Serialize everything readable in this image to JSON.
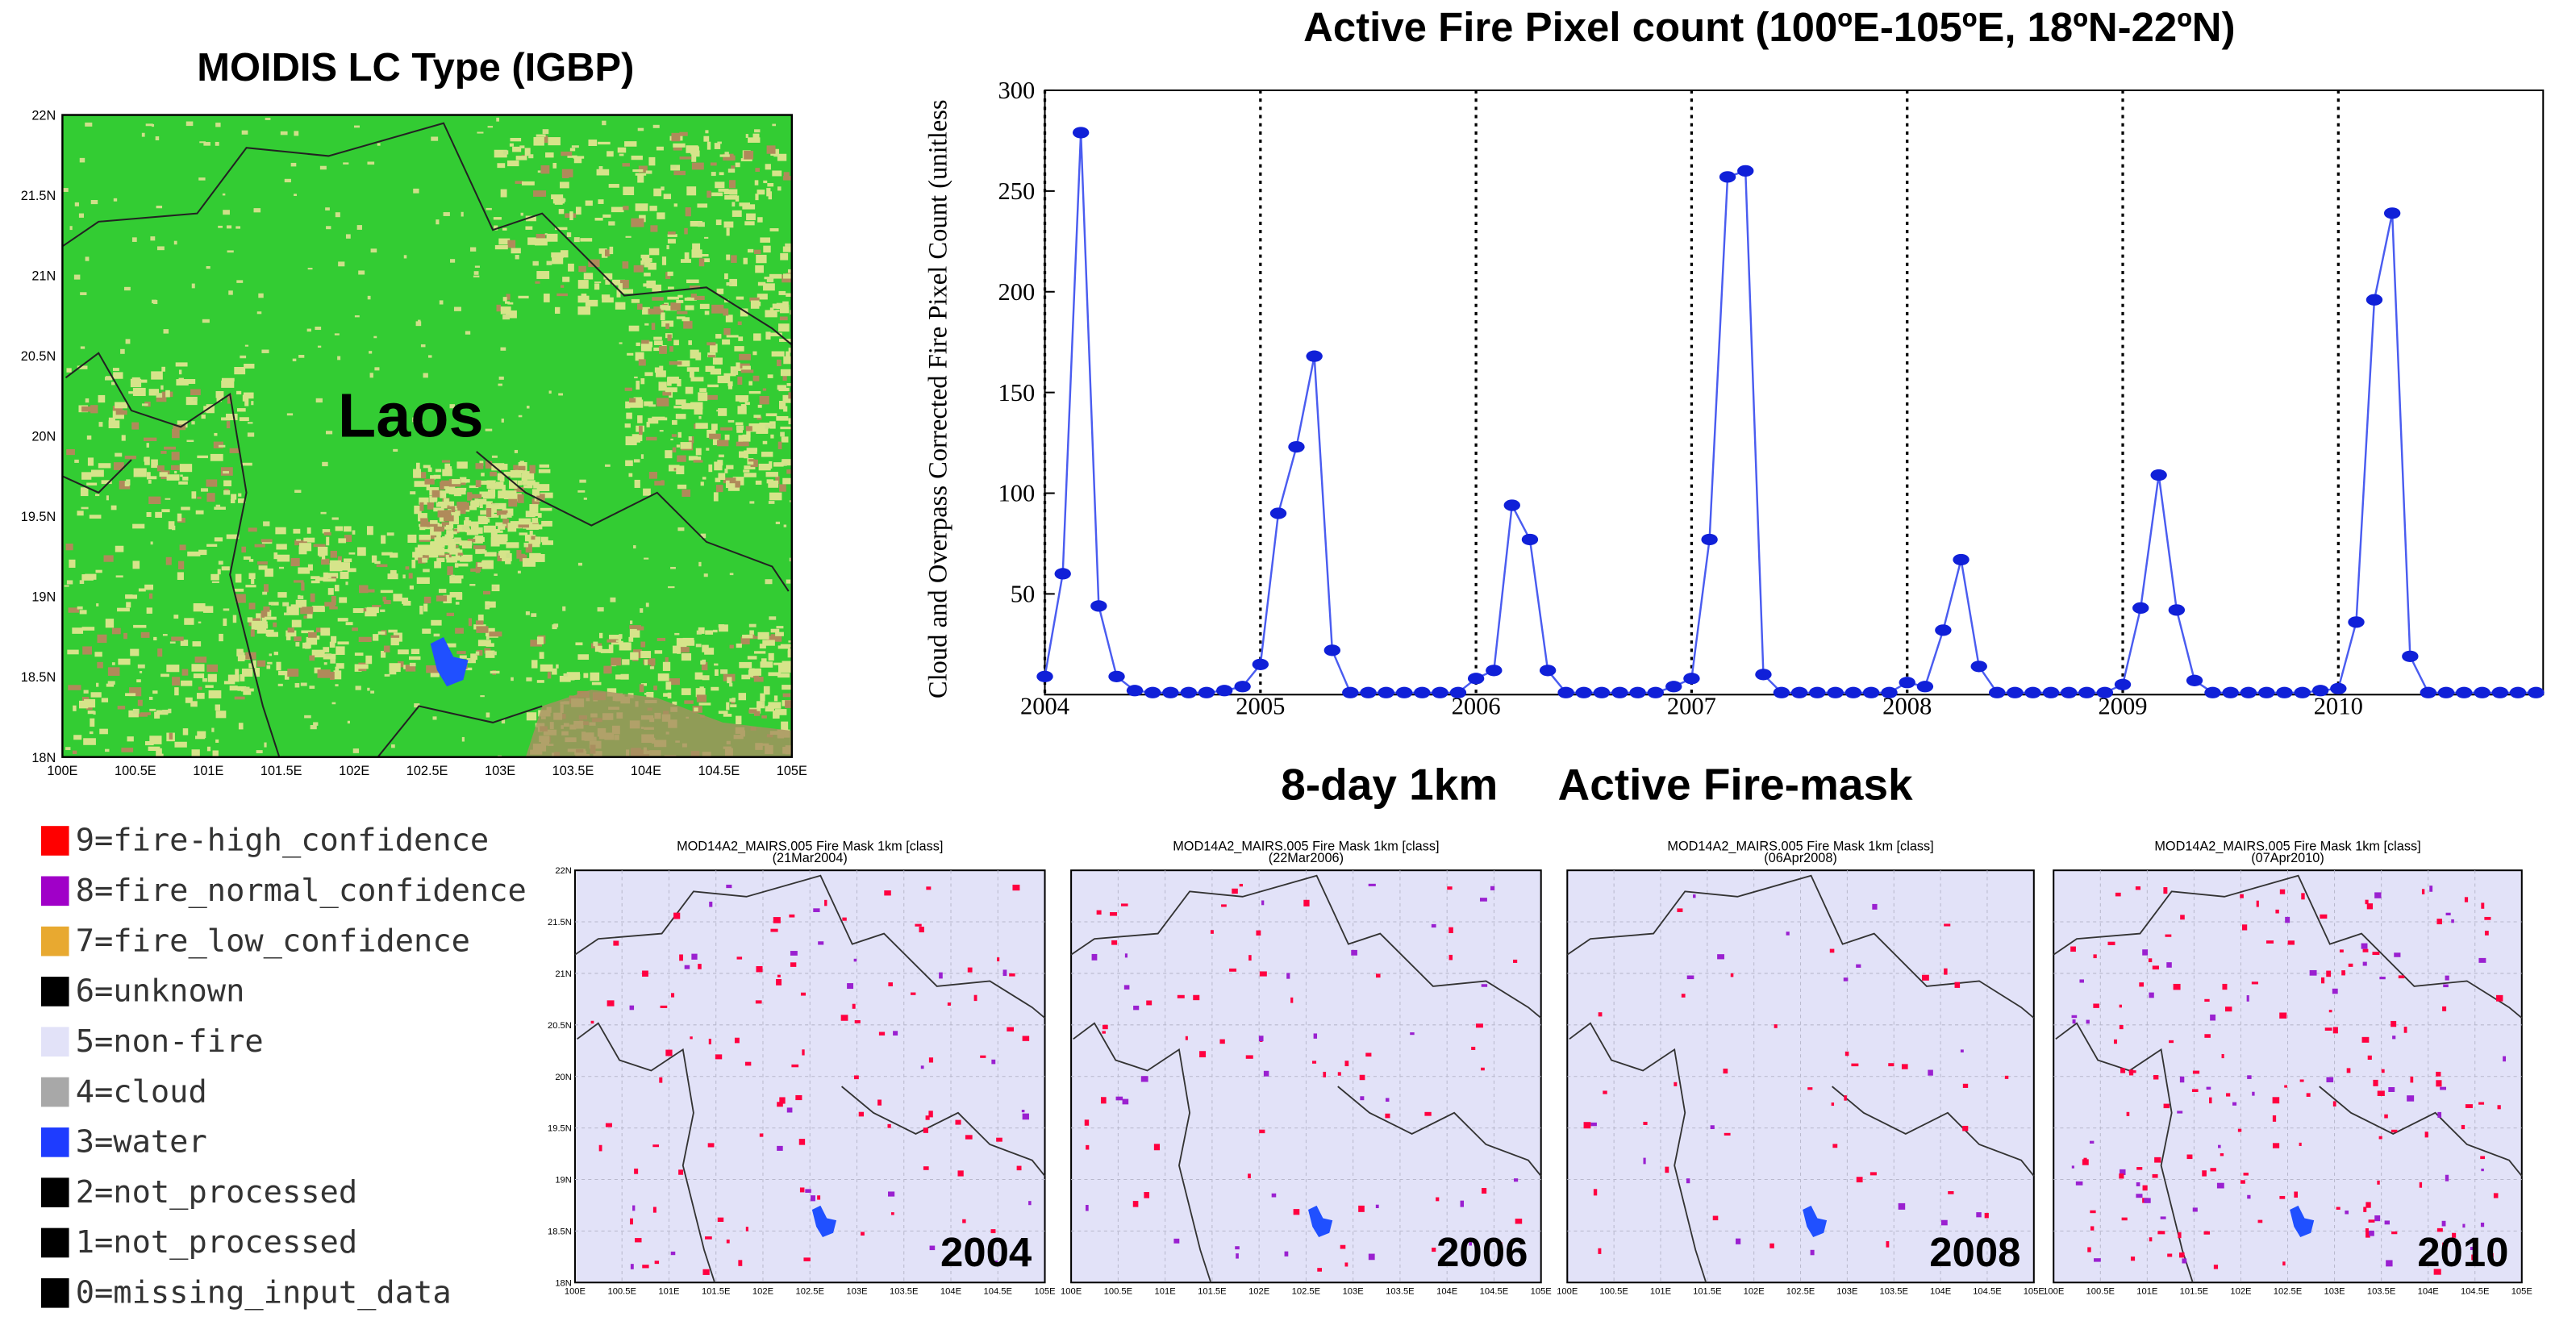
{
  "lc_map": {
    "title": "MOIDIS LC Type (IGBP)",
    "label": "Laos",
    "lat_ticks": [
      "22N",
      "21.5N",
      "21N",
      "20.5N",
      "20N",
      "19.5N",
      "19N",
      "18.5N",
      "18N"
    ],
    "lon_ticks": [
      "100E",
      "100.5E",
      "101E",
      "101.5E",
      "102E",
      "102.5E",
      "103E",
      "103.5E",
      "104E",
      "104.5E",
      "105E"
    ]
  },
  "legend": {
    "items": [
      {
        "label": "9=fire-high_confidence",
        "color": "#ff0000"
      },
      {
        "label": "8=fire_normal_confidence",
        "color": "#a000c8"
      },
      {
        "label": "7=fire_low_confidence",
        "color": "#e8a930"
      },
      {
        "label": "6=unknown",
        "color": "#000000"
      },
      {
        "label": "5=non-fire",
        "color": "#e2e2f8"
      },
      {
        "label": "4=cloud",
        "color": "#a8a8a8"
      },
      {
        "label": "3=water",
        "color": "#1e3cff"
      },
      {
        "label": "2=not_processed",
        "color": "#000000"
      },
      {
        "label": "1=not_processed",
        "color": "#000000"
      },
      {
        "label": "0=missing_input_data",
        "color": "#000000"
      }
    ]
  },
  "chart_data": {
    "type": "line",
    "title": "Active Fire Pixel count   (100ºE-105ºE, 18ºN-22ºN)",
    "ylabel": "Cloud and Overpass Corrected Fire Pixel Count  (unitless",
    "color": "#4a5cf0",
    "x": [
      2004,
      2004.083,
      2004.167,
      2004.25,
      2004.333,
      2004.417,
      2004.5,
      2004.583,
      2004.667,
      2004.75,
      2004.833,
      2004.917,
      2005,
      2005.083,
      2005.167,
      2005.25,
      2005.333,
      2005.417,
      2005.5,
      2005.583,
      2005.667,
      2005.75,
      2005.833,
      2005.917,
      2006,
      2006.083,
      2006.167,
      2006.25,
      2006.333,
      2006.417,
      2006.5,
      2006.583,
      2006.667,
      2006.75,
      2006.833,
      2006.917,
      2007,
      2007.083,
      2007.167,
      2007.25,
      2007.333,
      2007.417,
      2007.5,
      2007.583,
      2007.667,
      2007.75,
      2007.833,
      2007.917,
      2008,
      2008.083,
      2008.167,
      2008.25,
      2008.333,
      2008.417,
      2008.5,
      2008.583,
      2008.667,
      2008.75,
      2008.833,
      2008.917,
      2009,
      2009.083,
      2009.167,
      2009.25,
      2009.333,
      2009.417,
      2009.5,
      2009.583,
      2009.667,
      2009.75,
      2009.833,
      2009.917,
      2010,
      2010.083,
      2010.167,
      2010.25,
      2010.333,
      2010.417,
      2010.5,
      2010.583,
      2010.667,
      2010.75,
      2010.833,
      2010.917
    ],
    "values": [
      9,
      60,
      279,
      44,
      9,
      2,
      1,
      1,
      1,
      1,
      2,
      4,
      15,
      90,
      123,
      168,
      22,
      1,
      1,
      1,
      1,
      1,
      1,
      1,
      8,
      12,
      94,
      77,
      12,
      1,
      1,
      1,
      1,
      1,
      1,
      4,
      8,
      77,
      257,
      260,
      10,
      1,
      1,
      1,
      1,
      1,
      1,
      1,
      6,
      4,
      32,
      67,
      14,
      1,
      1,
      1,
      1,
      1,
      1,
      1,
      5,
      43,
      109,
      42,
      7,
      1,
      1,
      1,
      1,
      1,
      1,
      2,
      3,
      36,
      196,
      239,
      19,
      1,
      1,
      1,
      1,
      1,
      1,
      1
    ],
    "xlim": [
      2004,
      2010.95
    ],
    "ylim": [
      0,
      300
    ],
    "xticks": [
      2004,
      2005,
      2006,
      2007,
      2008,
      2009,
      2010
    ],
    "yticks": [
      50,
      100,
      150,
      200,
      250,
      300
    ],
    "grid": true
  },
  "fire_mask": {
    "title": "8-day 1km     Active Fire-mask",
    "panels": [
      {
        "title": "MOD14A2_MAIRS.005 Fire Mask 1km [class]",
        "date": "(21Mar2004)",
        "year": "2004"
      },
      {
        "title": "MOD14A2_MAIRS.005 Fire Mask 1km [class]",
        "date": "(22Mar2006)",
        "year": "2006"
      },
      {
        "title": "MOD14A2_MAIRS.005 Fire Mask 1km [class]",
        "date": "(06Apr2008)",
        "year": "2008"
      },
      {
        "title": "MOD14A2_MAIRS.005 Fire Mask 1km [class]",
        "date": "(07Apr2010)",
        "year": "2010"
      }
    ],
    "lat_ticks": [
      "22N",
      "21.5N",
      "21N",
      "20.5N",
      "20N",
      "19.5N",
      "19N",
      "18.5N",
      "18N"
    ],
    "lon_ticks": [
      "100E",
      "100.5E",
      "101E",
      "101.5E",
      "102E",
      "102.5E",
      "103E",
      "103.5E",
      "104E",
      "104.5E",
      "105E"
    ]
  }
}
